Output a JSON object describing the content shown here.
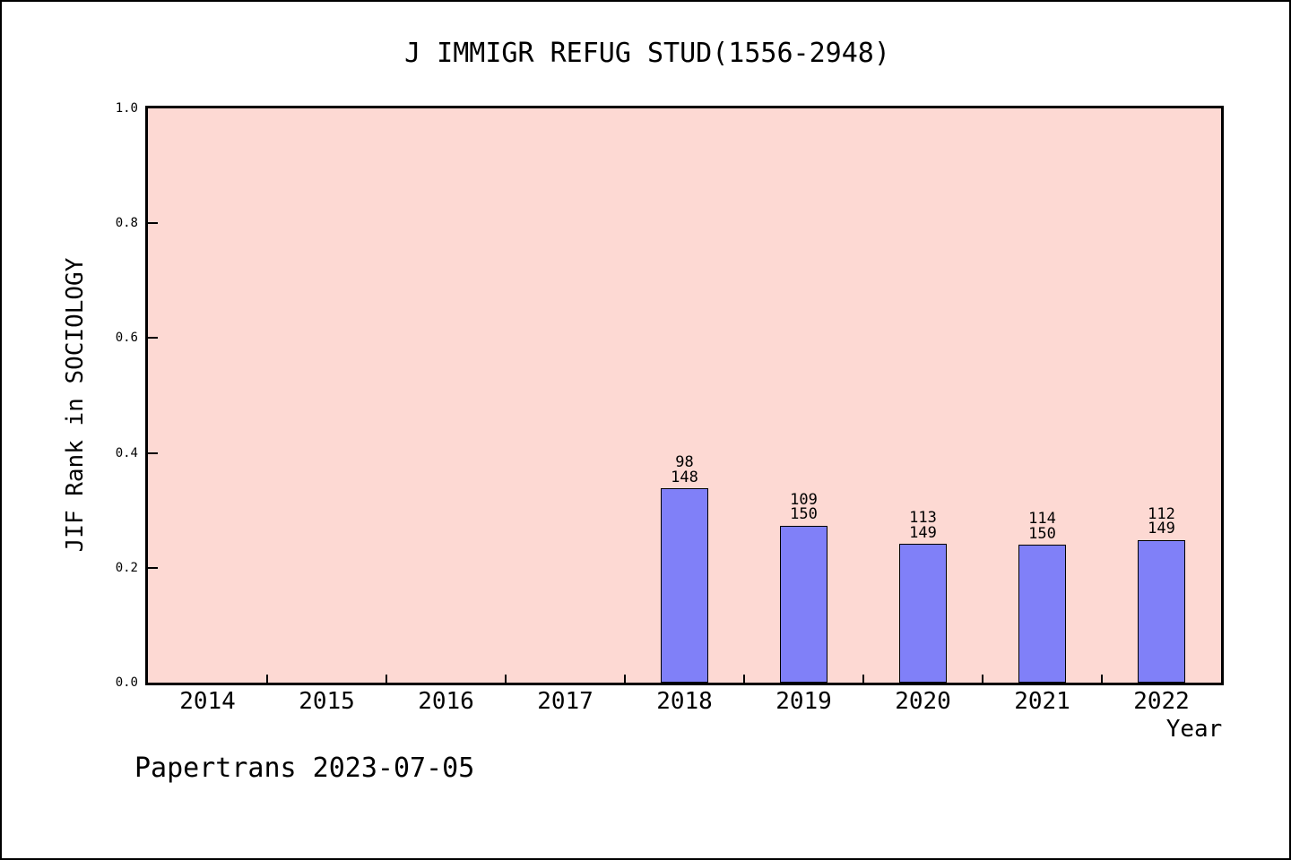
{
  "title": "J IMMIGR REFUG STUD(1556-2948)",
  "footer": "Papertrans 2023-07-05",
  "chart_data": {
    "type": "bar",
    "title": "J IMMIGR REFUG STUD(1556-2948)",
    "xlabel": "Year",
    "ylabel": "JIF Rank in SOCIOLOGY",
    "x_tick_labels": [
      "2014",
      "2015",
      "2016",
      "2017",
      "2018",
      "2019",
      "2020",
      "2021",
      "2022"
    ],
    "x_range": [
      2013.5,
      2022.5
    ],
    "ylim": [
      0.0,
      1.0
    ],
    "y_tick_labels": [
      "0.0",
      "0.2",
      "0.4",
      "0.6",
      "0.8",
      "1.0"
    ],
    "grid": false,
    "legend": null,
    "bar_width_years": 0.4,
    "bars": [
      {
        "year": 2018,
        "rank": "98",
        "total": "148",
        "value": 0.3378
      },
      {
        "year": 2019,
        "rank": "109",
        "total": "150",
        "value": 0.2733
      },
      {
        "year": 2020,
        "rank": "113",
        "total": "149",
        "value": 0.2417
      },
      {
        "year": 2021,
        "rank": "114",
        "total": "150",
        "value": 0.24
      },
      {
        "year": 2022,
        "rank": "112",
        "total": "149",
        "value": 0.2483
      }
    ],
    "colors": {
      "plot_bg": "#fdd9d3",
      "bar_fill": "#8080f8",
      "bar_edge": "#000000",
      "text": "#000000",
      "figure_bg": "#ffffff",
      "border": "#000000"
    }
  }
}
